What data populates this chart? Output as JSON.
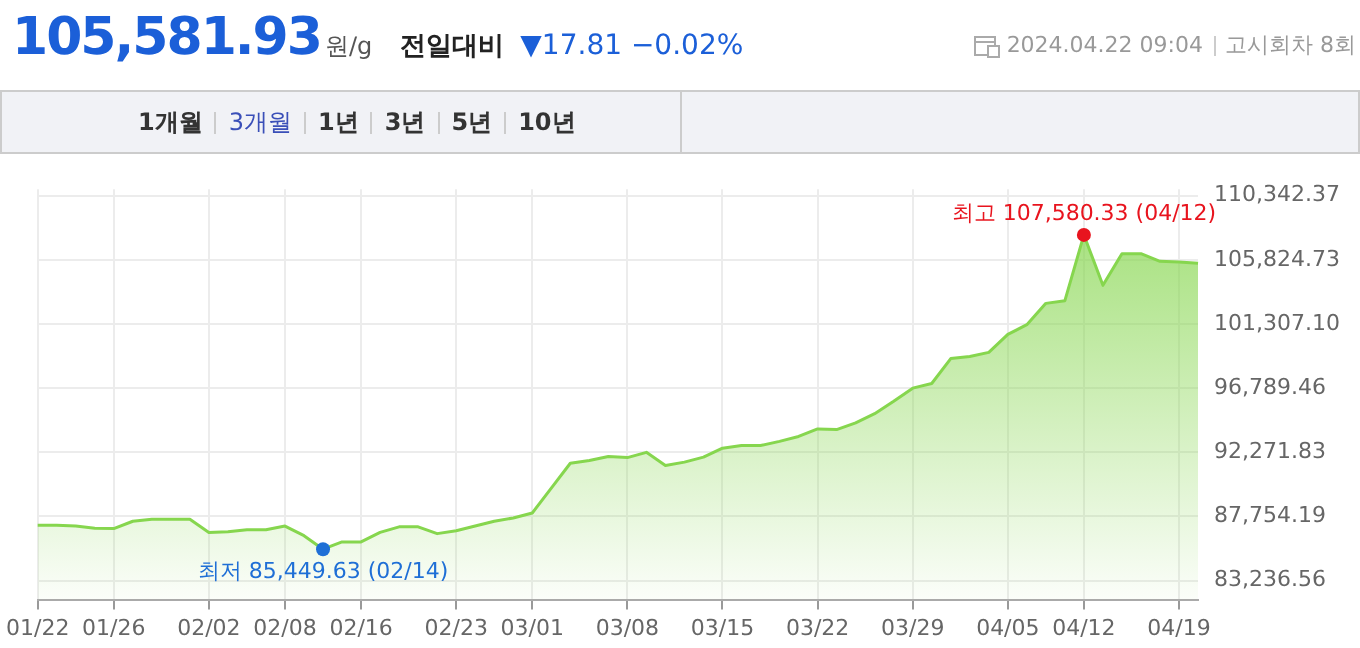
{
  "chart_data": {
    "type": "area",
    "title": "105,581.93",
    "subtitle": "원/g",
    "xlabel": null,
    "annotations": [
      "전일대비",
      "▼17.81 −0.02%",
      "2024.04.22 09:04",
      "고시회차 8회",
      "1개월",
      "3개월",
      "1년",
      "3년",
      "5년",
      "10년",
      {
        "text": "최고 107,580.33 (04/12)",
        "x": "04/12",
        "y": 107580.33
      },
      {
        "text": "최저 85,449.63 (02/14)",
        "y": 85449.63
      }
    ],
    "categories": [
      "01/22",
      null,
      null,
      null,
      "01/26",
      null,
      null,
      null,
      null,
      "02/02",
      null,
      null,
      null,
      "02/08",
      null,
      null,
      null,
      "02/16",
      null,
      null,
      null,
      null,
      "02/23",
      null,
      null,
      null,
      "03/01",
      null,
      null,
      null,
      null,
      "03/08",
      null,
      null,
      null,
      null,
      "03/15",
      null,
      null,
      null,
      null,
      "03/22",
      null,
      null,
      null,
      null,
      "03/29",
      null,
      null,
      null,
      null,
      "04/05",
      null,
      null,
      null,
      "04/12",
      null,
      null,
      null,
      null,
      "04/19",
      null
    ],
    "series": [
      {
        "color": "#86d64e",
        "values": [
          87127,
          87127,
          87080,
          86923,
          86900,
          87418,
          87560,
          87560,
          87560,
          86630,
          86680,
          86820,
          86820,
          87080,
          86400,
          85449.63,
          85960,
          85960,
          86630,
          87025,
          87025,
          86545,
          86750,
          87080,
          87418,
          87650,
          88000,
          89750,
          91500,
          91690,
          91980,
          91900,
          92270,
          91350,
          91580,
          91930,
          92560,
          92750,
          92750,
          93040,
          93390,
          93920,
          93870,
          94350,
          94995,
          95870,
          96790,
          97120,
          98870,
          99015,
          99310,
          100575,
          101260,
          102760,
          102950,
          107580.33,
          104030,
          106260,
          106260,
          105720,
          105680,
          105581.93
        ]
      }
    ],
    "ylim": [
      81900,
      110800
    ],
    "yticks": [
      {
        "value": 83236.56,
        "label": "83,236.56"
      },
      {
        "value": 87754.19,
        "label": "87,754.19"
      },
      {
        "value": 92271.83,
        "label": "92,271.83"
      },
      {
        "value": 96789.46,
        "label": "96,789.46"
      },
      {
        "value": 101307.1,
        "label": "101,307.10"
      },
      {
        "value": 105824.73,
        "label": "105,824.73"
      },
      {
        "value": 110342.37,
        "label": "110,342.37"
      }
    ],
    "grid": true,
    "legend": false
  }
}
